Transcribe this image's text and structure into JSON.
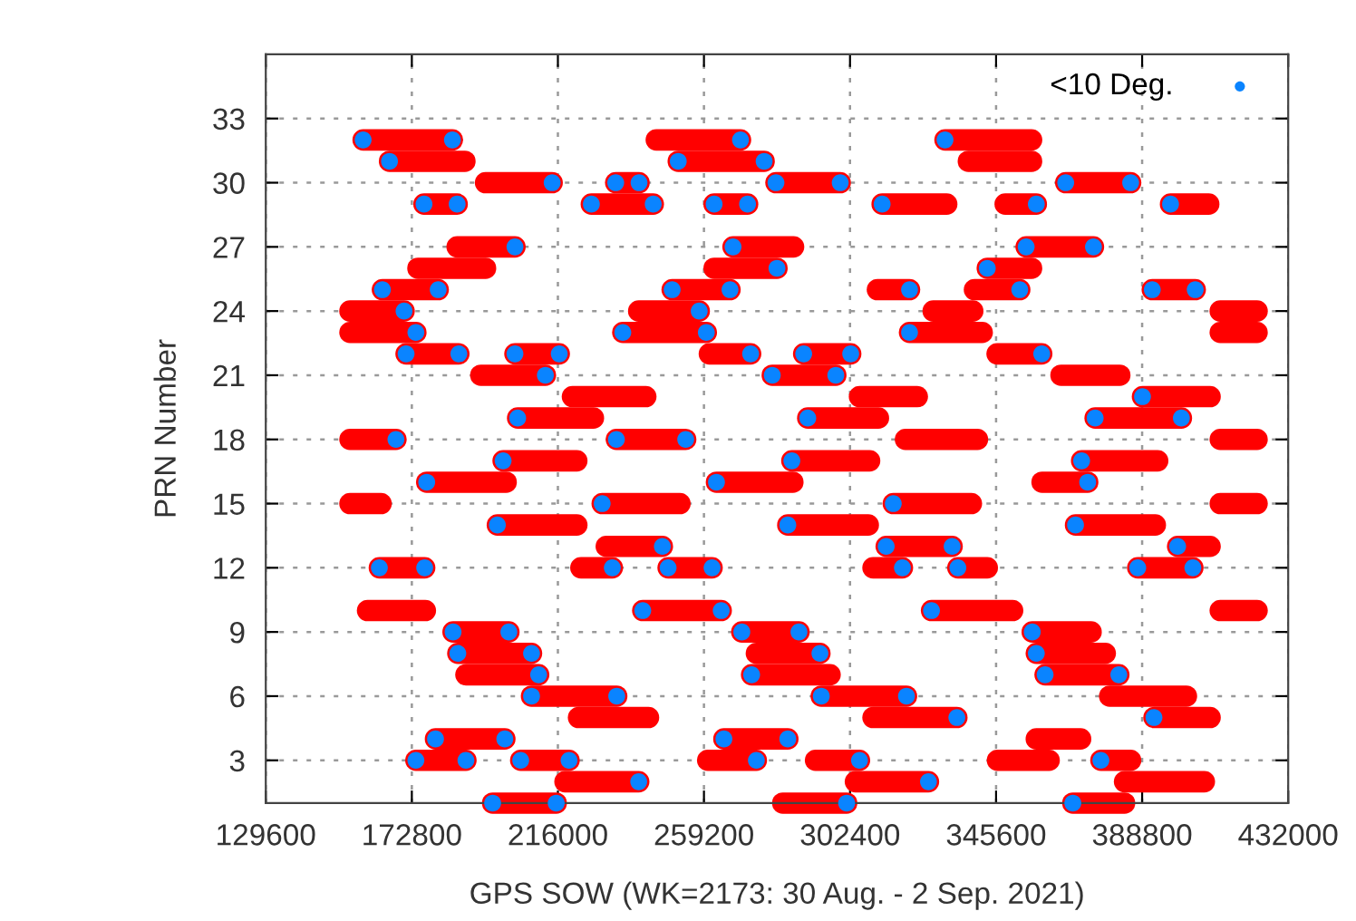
{
  "chart_data": {
    "type": "line",
    "xlabel": "GPS SOW (WK=2173: 30 Aug. - 2 Sep. 2021)",
    "ylabel": "PRN Number",
    "xlim": [
      129600,
      432000
    ],
    "xticks": [
      129600,
      172800,
      216000,
      259200,
      302400,
      345600,
      388800,
      432000
    ],
    "ylim": [
      1,
      36
    ],
    "yticks": [
      3,
      6,
      9,
      12,
      15,
      18,
      21,
      24,
      27,
      30,
      33
    ],
    "grid": true,
    "legend": "top right",
    "line_style": "solid",
    "series": [
      {
        "color": "#ff0000",
        "x": [
          158400,
          184800
        ],
        "values": [
          32,
          32
        ]
      },
      {
        "color": "#ff0000",
        "x": [
          245100,
          270000
        ],
        "values": [
          32,
          32
        ]
      },
      {
        "color": "#ff0000",
        "x": [
          330500,
          356100
        ],
        "values": [
          32,
          32
        ]
      },
      {
        "color": "#ff0000",
        "x": [
          166200,
          188500
        ],
        "values": [
          31,
          31
        ]
      },
      {
        "color": "#ff0000",
        "x": [
          251600,
          277000
        ],
        "values": [
          31,
          31
        ]
      },
      {
        "color": "#ff0000",
        "x": [
          337400,
          356100
        ],
        "values": [
          31,
          31
        ]
      },
      {
        "color": "#ff0000",
        "x": [
          194600,
          214300
        ],
        "values": [
          30,
          30
        ]
      },
      {
        "color": "#ff0000",
        "x": [
          233100,
          240000
        ],
        "values": [
          30,
          30
        ]
      },
      {
        "color": "#ff0000",
        "x": [
          280500,
          299500
        ],
        "values": [
          30,
          30
        ]
      },
      {
        "color": "#ff0000",
        "x": [
          366200,
          385400
        ],
        "values": [
          30,
          30
        ]
      },
      {
        "color": "#ff0000",
        "x": [
          176400,
          186200
        ],
        "values": [
          29,
          29
        ]
      },
      {
        "color": "#ff0000",
        "x": [
          225900,
          244200
        ],
        "values": [
          29,
          29
        ]
      },
      {
        "color": "#ff0000",
        "x": [
          262200,
          272100
        ],
        "values": [
          29,
          29
        ]
      },
      {
        "color": "#ff0000",
        "x": [
          311900,
          331000
        ],
        "values": [
          29,
          29
        ]
      },
      {
        "color": "#ff0000",
        "x": [
          348300,
          357500
        ],
        "values": [
          29,
          29
        ]
      },
      {
        "color": "#ff0000",
        "x": [
          397200,
          408500
        ],
        "values": [
          29,
          29
        ]
      },
      {
        "color": "#ff0000",
        "x": [
          186200,
          203300
        ],
        "values": [
          27,
          27
        ]
      },
      {
        "color": "#ff0000",
        "x": [
          267800,
          285700
        ],
        "values": [
          27,
          27
        ]
      },
      {
        "color": "#ff0000",
        "x": [
          354500,
          374400
        ],
        "values": [
          27,
          27
        ]
      },
      {
        "color": "#ff0000",
        "x": [
          174600,
          194600
        ],
        "values": [
          26,
          26
        ]
      },
      {
        "color": "#ff0000",
        "x": [
          262200,
          280800
        ],
        "values": [
          26,
          26
        ]
      },
      {
        "color": "#ff0000",
        "x": [
          343000,
          356100
        ],
        "values": [
          26,
          26
        ]
      },
      {
        "color": "#ff0000",
        "x": [
          164100,
          180600
        ],
        "values": [
          25,
          25
        ]
      },
      {
        "color": "#ff0000",
        "x": [
          249800,
          266900
        ],
        "values": [
          25,
          25
        ]
      },
      {
        "color": "#ff0000",
        "x": [
          310500,
          320000
        ],
        "values": [
          25,
          25
        ]
      },
      {
        "color": "#ff0000",
        "x": [
          339200,
          352600
        ],
        "values": [
          25,
          25
        ]
      },
      {
        "color": "#ff0000",
        "x": [
          391800,
          404500
        ],
        "values": [
          25,
          25
        ]
      },
      {
        "color": "#ff0000",
        "x": [
          154500,
          170500
        ],
        "values": [
          24,
          24
        ]
      },
      {
        "color": "#ff0000",
        "x": [
          239900,
          257800
        ],
        "values": [
          24,
          24
        ]
      },
      {
        "color": "#ff0000",
        "x": [
          327000,
          338700
        ],
        "values": [
          24,
          24
        ]
      },
      {
        "color": "#ff0000",
        "x": [
          411900,
          422800
        ],
        "values": [
          24,
          24
        ]
      },
      {
        "color": "#ff0000",
        "x": [
          154500,
          174000
        ],
        "values": [
          23,
          23
        ]
      },
      {
        "color": "#ff0000",
        "x": [
          235200,
          259900
        ],
        "values": [
          23,
          23
        ]
      },
      {
        "color": "#ff0000",
        "x": [
          320000,
          341500
        ],
        "values": [
          23,
          23
        ]
      },
      {
        "color": "#ff0000",
        "x": [
          411900,
          422800
        ],
        "values": [
          23,
          23
        ]
      },
      {
        "color": "#ff0000",
        "x": [
          171100,
          186700
        ],
        "values": [
          22,
          22
        ]
      },
      {
        "color": "#ff0000",
        "x": [
          203300,
          216400
        ],
        "values": [
          22,
          22
        ]
      },
      {
        "color": "#ff0000",
        "x": [
          260800,
          273000
        ],
        "values": [
          22,
          22
        ]
      },
      {
        "color": "#ff0000",
        "x": [
          288700,
          302600
        ],
        "values": [
          22,
          22
        ]
      },
      {
        "color": "#ff0000",
        "x": [
          345900,
          359100
        ],
        "values": [
          22,
          22
        ]
      },
      {
        "color": "#ff0000",
        "x": [
          193200,
          212300
        ],
        "values": [
          21,
          21
        ]
      },
      {
        "color": "#ff0000",
        "x": [
          279400,
          298200
        ],
        "values": [
          21,
          21
        ]
      },
      {
        "color": "#ff0000",
        "x": [
          364800,
          382200
        ],
        "values": [
          21,
          21
        ]
      },
      {
        "color": "#ff0000",
        "x": [
          220300,
          242000
        ],
        "values": [
          20,
          20
        ]
      },
      {
        "color": "#ff0000",
        "x": [
          305200,
          322300
        ],
        "values": [
          20,
          20
        ]
      },
      {
        "color": "#ff0000",
        "x": [
          388900,
          408900
        ],
        "values": [
          20,
          20
        ]
      },
      {
        "color": "#ff0000",
        "x": [
          204100,
          226500
        ],
        "values": [
          19,
          19
        ]
      },
      {
        "color": "#ff0000",
        "x": [
          289900,
          310800
        ],
        "values": [
          19,
          19
        ]
      },
      {
        "color": "#ff0000",
        "x": [
          374900,
          400400
        ],
        "values": [
          19,
          19
        ]
      },
      {
        "color": "#ff0000",
        "x": [
          154500,
          168100
        ],
        "values": [
          18,
          18
        ]
      },
      {
        "color": "#ff0000",
        "x": [
          233300,
          253800
        ],
        "values": [
          18,
          18
        ]
      },
      {
        "color": "#ff0000",
        "x": [
          318800,
          340100
        ],
        "values": [
          18,
          18
        ]
      },
      {
        "color": "#ff0000",
        "x": [
          411900,
          422800
        ],
        "values": [
          18,
          18
        ]
      },
      {
        "color": "#ff0000",
        "x": [
          199800,
          221600
        ],
        "values": [
          17,
          17
        ]
      },
      {
        "color": "#ff0000",
        "x": [
          285200,
          308200
        ],
        "values": [
          17,
          17
        ]
      },
      {
        "color": "#ff0000",
        "x": [
          370900,
          393400
        ],
        "values": [
          17,
          17
        ]
      },
      {
        "color": "#ff0000",
        "x": [
          177200,
          200700
        ],
        "values": [
          16,
          16
        ]
      },
      {
        "color": "#ff0000",
        "x": [
          262900,
          285500
        ],
        "values": [
          16,
          16
        ]
      },
      {
        "color": "#ff0000",
        "x": [
          359200,
          372700
        ],
        "values": [
          16,
          16
        ]
      },
      {
        "color": "#ff0000",
        "x": [
          154500,
          163700
        ],
        "values": [
          15,
          15
        ]
      },
      {
        "color": "#ff0000",
        "x": [
          229100,
          252100
        ],
        "values": [
          15,
          15
        ]
      },
      {
        "color": "#ff0000",
        "x": [
          315200,
          338300
        ],
        "values": [
          15,
          15
        ]
      },
      {
        "color": "#ff0000",
        "x": [
          411900,
          422800
        ],
        "values": [
          15,
          15
        ]
      },
      {
        "color": "#ff0000",
        "x": [
          198100,
          221600
        ],
        "values": [
          14,
          14
        ]
      },
      {
        "color": "#ff0000",
        "x": [
          284000,
          307800
        ],
        "values": [
          14,
          14
        ]
      },
      {
        "color": "#ff0000",
        "x": [
          369100,
          392700
        ],
        "values": [
          14,
          14
        ]
      },
      {
        "color": "#ff0000",
        "x": [
          230300,
          246900
        ],
        "values": [
          13,
          13
        ]
      },
      {
        "color": "#ff0000",
        "x": [
          313100,
          332600
        ],
        "values": [
          13,
          13
        ]
      },
      {
        "color": "#ff0000",
        "x": [
          399300,
          408900
        ],
        "values": [
          13,
          13
        ]
      },
      {
        "color": "#ff0000",
        "x": [
          163200,
          176600
        ],
        "values": [
          12,
          12
        ]
      },
      {
        "color": "#ff0000",
        "x": [
          222800,
          232100
        ],
        "values": [
          12,
          12
        ]
      },
      {
        "color": "#ff0000",
        "x": [
          248600,
          261600
        ],
        "values": [
          12,
          12
        ]
      },
      {
        "color": "#ff0000",
        "x": [
          309200,
          317900
        ],
        "values": [
          12,
          12
        ]
      },
      {
        "color": "#ff0000",
        "x": [
          334300,
          343000
        ],
        "values": [
          12,
          12
        ]
      },
      {
        "color": "#ff0000",
        "x": [
          387500,
          403800
        ],
        "values": [
          12,
          12
        ]
      },
      {
        "color": "#ff0000",
        "x": [
          159700,
          176800
        ],
        "values": [
          10,
          10
        ]
      },
      {
        "color": "#ff0000",
        "x": [
          241100,
          264300
        ],
        "values": [
          10,
          10
        ]
      },
      {
        "color": "#ff0000",
        "x": [
          326500,
          350500
        ],
        "values": [
          10,
          10
        ]
      },
      {
        "color": "#ff0000",
        "x": [
          411900,
          422800
        ],
        "values": [
          10,
          10
        ]
      },
      {
        "color": "#ff0000",
        "x": [
          185000,
          201500
        ],
        "values": [
          9,
          9
        ]
      },
      {
        "color": "#ff0000",
        "x": [
          270400,
          287300
        ],
        "values": [
          9,
          9
        ]
      },
      {
        "color": "#ff0000",
        "x": [
          356300,
          373700
        ],
        "values": [
          9,
          9
        ]
      },
      {
        "color": "#ff0000",
        "x": [
          186400,
          208200
        ],
        "values": [
          8,
          8
        ]
      },
      {
        "color": "#ff0000",
        "x": [
          274700,
          293500
        ],
        "values": [
          8,
          8
        ]
      },
      {
        "color": "#ff0000",
        "x": [
          357500,
          377900
        ],
        "values": [
          8,
          8
        ]
      },
      {
        "color": "#ff0000",
        "x": [
          188800,
          210300
        ],
        "values": [
          7,
          7
        ]
      },
      {
        "color": "#ff0000",
        "x": [
          273300,
          296500
        ],
        "values": [
          7,
          7
        ]
      },
      {
        "color": "#ff0000",
        "x": [
          360100,
          381900
        ],
        "values": [
          7,
          7
        ]
      },
      {
        "color": "#ff0000",
        "x": [
          208200,
          233400
        ],
        "values": [
          6,
          6
        ]
      },
      {
        "color": "#ff0000",
        "x": [
          293900,
          319100
        ],
        "values": [
          6,
          6
        ]
      },
      {
        "color": "#ff0000",
        "x": [
          379200,
          401900
        ],
        "values": [
          6,
          6
        ]
      },
      {
        "color": "#ff0000",
        "x": [
          222100,
          242800
        ],
        "values": [
          5,
          5
        ]
      },
      {
        "color": "#ff0000",
        "x": [
          309200,
          334000
        ],
        "values": [
          5,
          5
        ]
      },
      {
        "color": "#ff0000",
        "x": [
          392300,
          408900
        ],
        "values": [
          5,
          5
        ]
      },
      {
        "color": "#ff0000",
        "x": [
          179800,
          200300
        ],
        "values": [
          4,
          4
        ]
      },
      {
        "color": "#ff0000",
        "x": [
          265100,
          284000
        ],
        "values": [
          4,
          4
        ]
      },
      {
        "color": "#ff0000",
        "x": [
          357500,
          370600
        ],
        "values": [
          4,
          4
        ]
      },
      {
        "color": "#ff0000",
        "x": [
          174000,
          188800
        ],
        "values": [
          3,
          3
        ]
      },
      {
        "color": "#ff0000",
        "x": [
          205000,
          219300
        ],
        "values": [
          3,
          3
        ]
      },
      {
        "color": "#ff0000",
        "x": [
          260300,
          274700
        ],
        "values": [
          3,
          3
        ]
      },
      {
        "color": "#ff0000",
        "x": [
          292200,
          305200
        ],
        "values": [
          3,
          3
        ]
      },
      {
        "color": "#ff0000",
        "x": [
          346000,
          361300
        ],
        "values": [
          3,
          3
        ]
      },
      {
        "color": "#ff0000",
        "x": [
          376600,
          385400
        ],
        "values": [
          3,
          3
        ]
      },
      {
        "color": "#ff0000",
        "x": [
          218100,
          239900
        ],
        "values": [
          2,
          2
        ]
      },
      {
        "color": "#ff0000",
        "x": [
          304000,
          325600
        ],
        "values": [
          2,
          2
        ]
      },
      {
        "color": "#ff0000",
        "x": [
          383600,
          407200
        ],
        "values": [
          2,
          2
        ]
      },
      {
        "color": "#ff0000",
        "x": [
          196700,
          215500
        ],
        "values": [
          1,
          1
        ]
      },
      {
        "color": "#ff0000",
        "x": [
          282500,
          301400
        ],
        "values": [
          1,
          1
        ]
      },
      {
        "color": "#ff0000",
        "x": [
          368300,
          383600
        ],
        "values": [
          1,
          1
        ]
      },
      {
        "type": "scatter",
        "name": "<10 Deg.",
        "color": "#0a84ff",
        "marker": "circle",
        "x": [
          158400,
          184800,
          270000,
          330500,
          166200,
          251600,
          277000,
          214300,
          233100,
          240000,
          280500,
          299500,
          366200,
          385400,
          176400,
          186200,
          225900,
          244200,
          262200,
          272100,
          311900,
          357500,
          397200,
          203300,
          267800,
          354500,
          374400,
          280800,
          343000,
          164100,
          180600,
          249800,
          266900,
          320000,
          352600,
          391800,
          404500,
          170500,
          257800,
          174000,
          235200,
          259900,
          320000,
          171100,
          186700,
          203300,
          216400,
          273000,
          288700,
          302600,
          359100,
          212300,
          279400,
          298200,
          388900,
          204100,
          289900,
          374900,
          400400,
          168100,
          233300,
          253800,
          199800,
          285200,
          370900,
          177200,
          262900,
          372700,
          229100,
          315200,
          198100,
          284000,
          369100,
          246900,
          313100,
          332600,
          399300,
          163200,
          176600,
          232100,
          248600,
          261600,
          317900,
          334300,
          387500,
          403800,
          241100,
          264300,
          326500,
          185000,
          201500,
          270400,
          287300,
          356300,
          186400,
          208200,
          293500,
          357500,
          210300,
          273300,
          360100,
          381900,
          208200,
          233400,
          293900,
          319100,
          334000,
          392300,
          179800,
          200300,
          265100,
          284000,
          174000,
          188800,
          205000,
          219300,
          274700,
          305200,
          376600,
          239900,
          325600,
          196700,
          215500,
          301400,
          368300
        ],
        "values": [
          32,
          32,
          32,
          32,
          31,
          31,
          31,
          30,
          30,
          30,
          30,
          30,
          30,
          30,
          29,
          29,
          29,
          29,
          29,
          29,
          29,
          29,
          29,
          27,
          27,
          27,
          27,
          26,
          26,
          25,
          25,
          25,
          25,
          25,
          25,
          25,
          25,
          24,
          24,
          23,
          23,
          23,
          23,
          22,
          22,
          22,
          22,
          22,
          22,
          22,
          22,
          21,
          21,
          21,
          20,
          19,
          19,
          19,
          19,
          18,
          18,
          18,
          17,
          17,
          17,
          16,
          16,
          16,
          15,
          15,
          14,
          14,
          14,
          13,
          13,
          13,
          13,
          12,
          12,
          12,
          12,
          12,
          12,
          12,
          12,
          12,
          10,
          10,
          10,
          9,
          9,
          9,
          9,
          9,
          8,
          8,
          8,
          8,
          7,
          7,
          7,
          7,
          6,
          6,
          6,
          6,
          5,
          5,
          4,
          4,
          4,
          4,
          3,
          3,
          3,
          3,
          3,
          3,
          3,
          2,
          2,
          1,
          1,
          1,
          1
        ]
      }
    ]
  }
}
